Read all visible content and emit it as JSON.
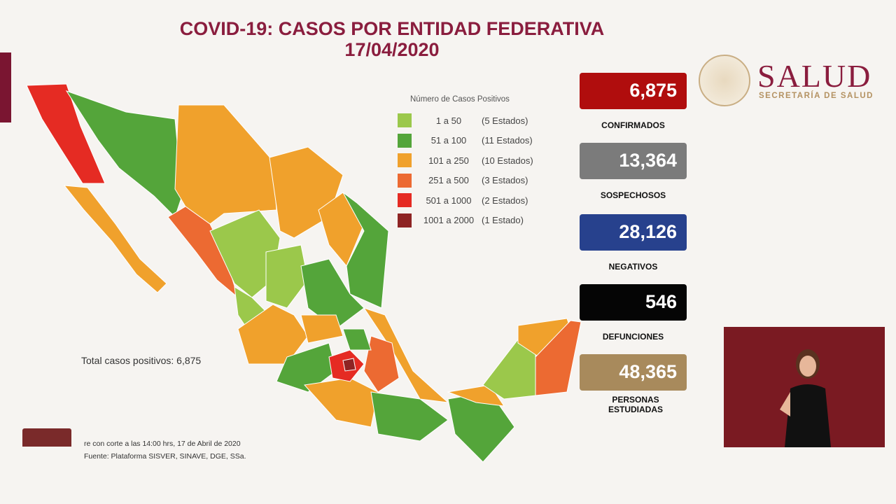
{
  "title": {
    "line1": "COVID-19: CASOS POR ENTIDAD FEDERATIVA",
    "line2": "17/04/2020"
  },
  "legend": {
    "title": "Número de Casos Positivos",
    "items": [
      {
        "range": "1 a 50",
        "count": "(5 Estados)",
        "color": "#9bc84b"
      },
      {
        "range": "51 a 100",
        "count": "(11 Estados)",
        "color": "#54a53a"
      },
      {
        "range": "101 a 250",
        "count": "(10 Estados)",
        "color": "#f0a12c"
      },
      {
        "range": "251 a 500",
        "count": "(3 Estados)",
        "color": "#ec6a32"
      },
      {
        "range": "501 a 1000",
        "count": "(2 Estados)",
        "color": "#e52b23"
      },
      {
        "range": "1001 a 2000",
        "count": "(1 Estado)",
        "color": "#8e2424"
      }
    ]
  },
  "stats": [
    {
      "value": "6,875",
      "label": "CONFIRMADOS",
      "color": "#b00d0d"
    },
    {
      "value": "13,364",
      "label": "SOSPECHOSOS",
      "color": "#7b7b7b"
    },
    {
      "value": "28,126",
      "label": "NEGATIVOS",
      "color": "#27418d"
    },
    {
      "value": "546",
      "label": "DEFUNCIONES",
      "color": "#050505"
    },
    {
      "value": "48,365",
      "label": "PERSONAS ESTUDIADAS",
      "color": "#a88a5c"
    }
  ],
  "logo": {
    "name": "SALUD",
    "subtitle": "SECRETARÍA DE SALUD"
  },
  "total": "Total casos positivos: 6,875",
  "footer": {
    "line1": "re con corte a las 14:00 hrs, 17 de Abril de 2020",
    "line2": "Fuente: Plataforma SISVER, SINAVE, DGE, SSa."
  }
}
